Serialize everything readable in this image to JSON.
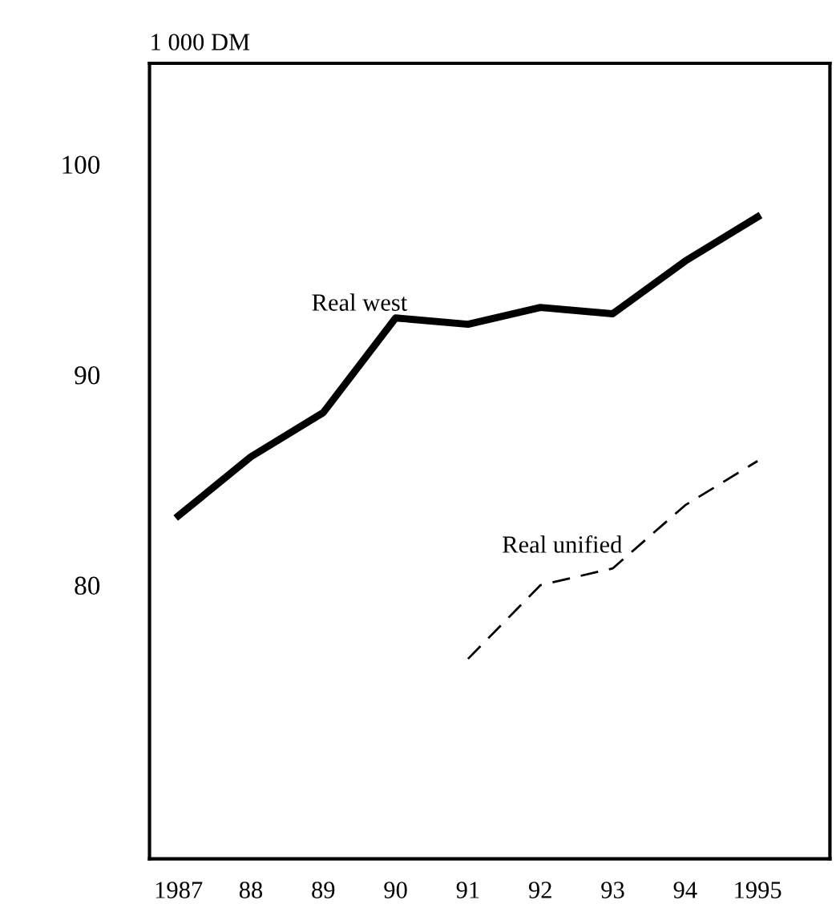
{
  "chart_data": {
    "type": "line",
    "ylabel": "1 000 DM",
    "x": [
      1987,
      1988,
      1989,
      1990,
      1991,
      1992,
      1993,
      1994,
      1995
    ],
    "xlim": [
      1986.6,
      1996
    ],
    "ylim": [
      67,
      104.8
    ],
    "xticks": [
      {
        "value": 1987,
        "label": "1987"
      },
      {
        "value": 1988,
        "label": "88"
      },
      {
        "value": 1989,
        "label": "89"
      },
      {
        "value": 1990,
        "label": "90"
      },
      {
        "value": 1991,
        "label": "91"
      },
      {
        "value": 1992,
        "label": "92"
      },
      {
        "value": 1993,
        "label": "93"
      },
      {
        "value": 1994,
        "label": "94"
      },
      {
        "value": 1995,
        "label": "1995"
      }
    ],
    "yticks": [
      80,
      90,
      100
    ],
    "grid": false,
    "legend": false,
    "marker": "none",
    "series": [
      {
        "name": "Real west",
        "color": "#000000",
        "line_style": "solid",
        "values": [
          83.3,
          86.1,
          88.2,
          92.7,
          92.4,
          93.2,
          92.9,
          95.4,
          97.5
        ]
      },
      {
        "name": "Real unified",
        "color": "#000000",
        "line_style": "dashed",
        "values": [
          null,
          null,
          null,
          null,
          76.5,
          80.0,
          80.8,
          83.8,
          85.9
        ]
      }
    ]
  }
}
